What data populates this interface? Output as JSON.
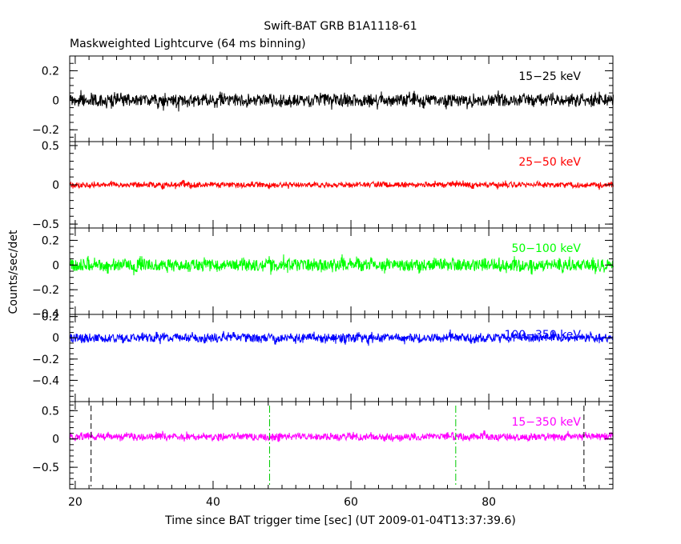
{
  "figure": {
    "title": "Swift-BAT GRB B1A1118-61",
    "subtitle": "Maskweighted Lightcurve (64 ms binning)",
    "ylabel": "Counts/sec/det",
    "xlabel": "Time since BAT trigger time [sec] (UT 2009-01-04T13:37:39.6)"
  },
  "chart_data": {
    "type": "line",
    "title": "Swift-BAT GRB B1A1118-61",
    "subtitle": "Maskweighted Lightcurve (64 ms binning)",
    "xlabel": "Time since BAT trigger time [sec] (UT 2009-01-04T13:37:39.6)",
    "ylabel": "Counts/sec/det",
    "xlim": [
      19.2,
      98
    ],
    "x_ticks": [
      20,
      40,
      60,
      80
    ],
    "bin_seconds": 0.064,
    "panels": [
      {
        "band": "15-25 keV",
        "label": "15−25 keV",
        "color": "#000000",
        "ylim": [
          -0.28,
          0.3
        ],
        "y_ticks": [
          0.2,
          0,
          -0.2
        ],
        "y_tick_labels": [
          "0.2",
          "0",
          "−0.2"
        ],
        "mean": 0.0,
        "noise_amplitude": 0.03
      },
      {
        "band": "25-50 keV",
        "label": "25−50 keV",
        "color": "#ff0000",
        "ylim": [
          -0.55,
          0.55
        ],
        "y_ticks": [
          0.5,
          0,
          -0.5
        ],
        "y_tick_labels": [
          "0.5",
          "0",
          "−0.5"
        ],
        "mean": 0.0,
        "noise_amplitude": 0.025
      },
      {
        "band": "50-100 keV",
        "label": "50−100 keV",
        "color": "#00ff00",
        "ylim": [
          -0.4,
          0.3
        ],
        "y_ticks": [
          0.2,
          0,
          -0.2
        ],
        "y_tick_labels": [
          "0.2",
          "0",
          "−0.2"
        ],
        "mean": 0.0,
        "noise_amplitude": 0.035
      },
      {
        "band": "100-350 keV",
        "label": "100−350 keV",
        "color": "#0000ff",
        "ylim": [
          -0.6,
          0.22
        ],
        "y_ticks": [
          0.2,
          0,
          -0.2,
          -0.4
        ],
        "y_tick_labels": [
          "0.2",
          "0",
          "−0.2",
          "−0.4"
        ],
        "mean": 0.0,
        "noise_amplitude": 0.03
      },
      {
        "band": "15-350 keV",
        "label": "15−350 keV",
        "color": "#ff00ff",
        "ylim": [
          -0.88,
          0.66
        ],
        "y_ticks": [
          0.5,
          0,
          -0.5
        ],
        "y_tick_labels": [
          "0.5",
          "0",
          "−0.5"
        ],
        "mean": 0.04,
        "noise_amplitude": 0.045
      }
    ],
    "shared_tick_label": "−0.4",
    "markers": [
      {
        "x": 22.3,
        "style": "black-dashed",
        "color": "#000000"
      },
      {
        "x": 48.2,
        "style": "green-dashdot",
        "color": "#00cc00"
      },
      {
        "x": 75.2,
        "style": "green-dashdot",
        "color": "#00cc00"
      },
      {
        "x": 93.8,
        "style": "black-dashed",
        "color": "#000000"
      }
    ],
    "grid": false,
    "legend": "band label inside each panel, top-right"
  }
}
